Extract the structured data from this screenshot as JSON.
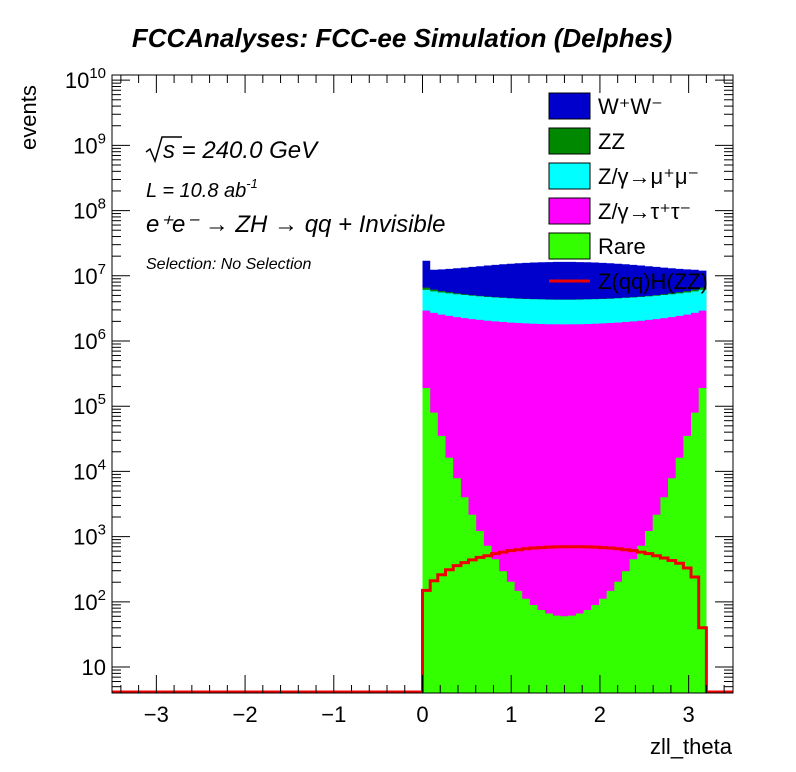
{
  "chart_data": {
    "type": "area",
    "title": "FCCAnalyses: FCC-ee Simulation (Delphes)",
    "xlabel": "zll_theta",
    "ylabel": "events",
    "log_y": true,
    "xlim": [
      -3.5,
      3.5
    ],
    "ylim": [
      4,
      12000000000
    ],
    "x_ticks": [
      -3,
      -2,
      -1,
      0,
      1,
      2,
      3
    ],
    "x_tick_labels": [
      "−3",
      "−2",
      "−1",
      "0",
      "1",
      "2",
      "3"
    ],
    "y_tick_labels": [
      {
        "base": "10",
        "exp": "",
        "value": 10
      },
      {
        "base": "10",
        "exp": "2",
        "value": 100
      },
      {
        "base": "10",
        "exp": "3",
        "value": 1000
      },
      {
        "base": "10",
        "exp": "4",
        "value": 10000
      },
      {
        "base": "10",
        "exp": "5",
        "value": 100000
      },
      {
        "base": "10",
        "exp": "6",
        "value": 1000000
      },
      {
        "base": "10",
        "exp": "7",
        "value": 10000000
      },
      {
        "base": "10",
        "exp": "8",
        "value": 100000000
      },
      {
        "base": "10",
        "exp": "9",
        "value": 1000000000
      },
      {
        "base": "10",
        "exp": "10",
        "value": 10000000000
      }
    ],
    "annotations": {
      "sqrt_s": "s = 240.0 GeV",
      "lumi_main": "L = 10.8 ab",
      "lumi_exp": "-1",
      "process": "e⁺e⁻ → ZH → qq + Invisible",
      "selection": "Selection: No Selection"
    },
    "x_range": [
      0,
      3.2
    ],
    "first_bin_value": 17000000,
    "last_bin_value": 12000000,
    "stacked_series": [
      {
        "name": "W⁺W⁻",
        "color": "#0000cc",
        "edge": 5500000,
        "center": 12000000
      },
      {
        "name": "ZZ",
        "color": "#008800",
        "edge": 600000,
        "center": 30000
      },
      {
        "name": "Z/γ→μ⁺μ⁻",
        "color": "#00ffff",
        "edge": 3200000,
        "center": 2500000
      },
      {
        "name": "Z/γ→τ⁺τ⁻",
        "color": "#ff00ff",
        "edge": 2800000,
        "center": 1800000
      },
      {
        "name": "Rare",
        "color": "#33ff00",
        "edge": 300000,
        "center": 60
      }
    ],
    "signal_series": {
      "name": "Z(qq)H(ZZ)",
      "color": "#ee0000",
      "values": [
        150,
        210,
        260,
        310,
        360,
        400,
        440,
        480,
        510,
        550,
        580,
        610,
        630,
        650,
        670,
        680,
        690,
        695,
        700,
        700,
        700,
        695,
        690,
        680,
        670,
        650,
        630,
        610,
        580,
        550,
        510,
        470,
        430,
        390,
        330,
        240,
        40
      ]
    }
  }
}
